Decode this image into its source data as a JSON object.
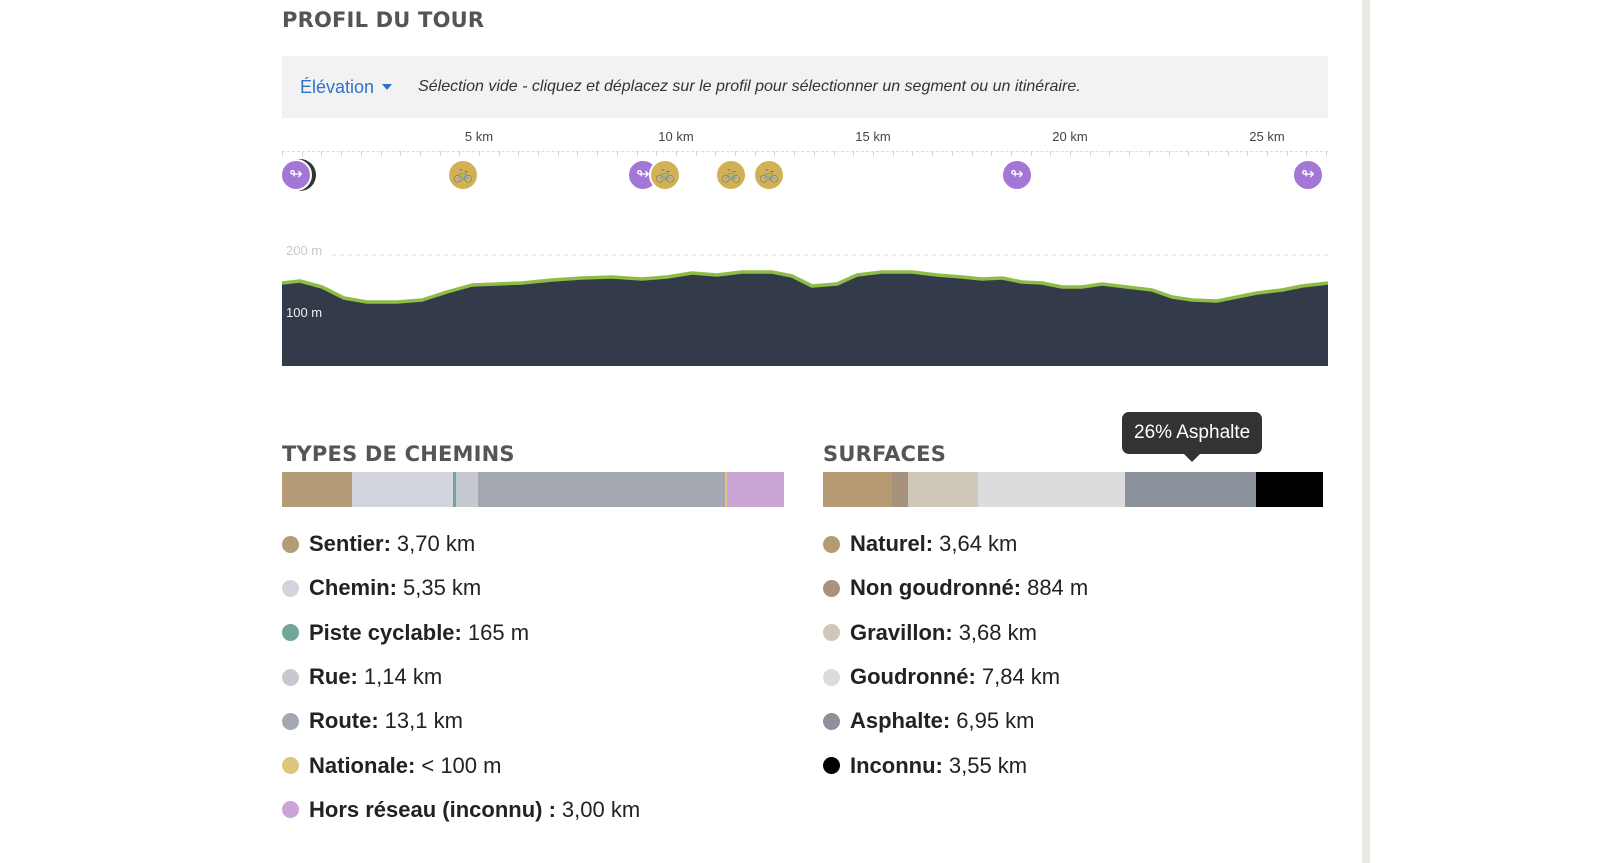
{
  "tour_profile": {
    "title": "PROFIL DU TOUR",
    "dropdown_label": "Élévation",
    "selection_hint": "Sélection vide - cliquez et déplacez sur le profil pour sélectionner un segment ou un itinéraire.",
    "distance_ticks": [
      "5 km",
      "10 km",
      "15 km",
      "20 km",
      "25 km"
    ],
    "elevation_labels": [
      "200 m",
      "100 m"
    ],
    "colors": {
      "fill": "#333a49",
      "line": "#8fbc45",
      "waypoint": "#a377d6",
      "bike": "#d2b155"
    },
    "pois": [
      {
        "type": "waypoint",
        "icon": "waypoint-icon",
        "glyph": "↬"
      },
      {
        "type": "bike",
        "icon": "bicycle-icon",
        "glyph": "🚲"
      },
      {
        "type": "waypoint",
        "icon": "waypoint-icon",
        "glyph": "↬"
      },
      {
        "type": "bike",
        "icon": "bicycle-icon",
        "glyph": "🚲"
      },
      {
        "type": "bike",
        "icon": "bicycle-icon",
        "glyph": "🚲"
      },
      {
        "type": "bike",
        "icon": "bicycle-icon",
        "glyph": "🚲"
      },
      {
        "type": "waypoint",
        "icon": "waypoint-icon",
        "glyph": "↬"
      },
      {
        "type": "waypoint",
        "icon": "waypoint-icon",
        "glyph": "↬"
      }
    ]
  },
  "way_types": {
    "title": "TYPES DE CHEMINS",
    "items": [
      {
        "label": "Sentier:",
        "value": "3,70 km",
        "color": "#b39b78",
        "share": 0.138
      },
      {
        "label": "Chemin:",
        "value": "5,35 km",
        "color": "#d2d5dd",
        "share": 0.2
      },
      {
        "label": "Piste cyclable:",
        "value": "165 m",
        "color": "#6fa89a",
        "share": 0.006
      },
      {
        "label": "Rue:",
        "value": "1,14 km",
        "color": "#c6c9cf",
        "share": 0.043
      },
      {
        "label": "Route:",
        "value": "13,1 km",
        "color": "#a3a8b1",
        "share": 0.489
      },
      {
        "label": "Nationale:",
        "value": "< 100 m",
        "color": "#ddc67c",
        "share": 0.004
      },
      {
        "label": "Hors réseau (inconnu) :",
        "value": "3,00 km",
        "color": "#c9a6d6",
        "share": 0.112
      }
    ]
  },
  "surfaces": {
    "title": "SURFACES",
    "tooltip": "26% Asphalte",
    "items": [
      {
        "label": "Naturel:",
        "value": "3,64 km",
        "color": "#b69a73",
        "share": 0.136
      },
      {
        "label": "Non goudronné:",
        "value": "884 m",
        "color": "#a7927e",
        "share": 0.033
      },
      {
        "label": "Gravillon:",
        "value": "3,68 km",
        "color": "#cec7ba",
        "share": 0.137
      },
      {
        "label": "Goudronné:",
        "value": "7,84 km",
        "color": "#dcdcdc",
        "share": 0.292
      },
      {
        "label": "Asphalte:",
        "value": "6,95 km",
        "color": "#8c929b",
        "share": 0.26
      },
      {
        "label": "Inconnu:",
        "value": "3,55 km",
        "color": "#000000",
        "share": 0.133
      }
    ]
  }
}
